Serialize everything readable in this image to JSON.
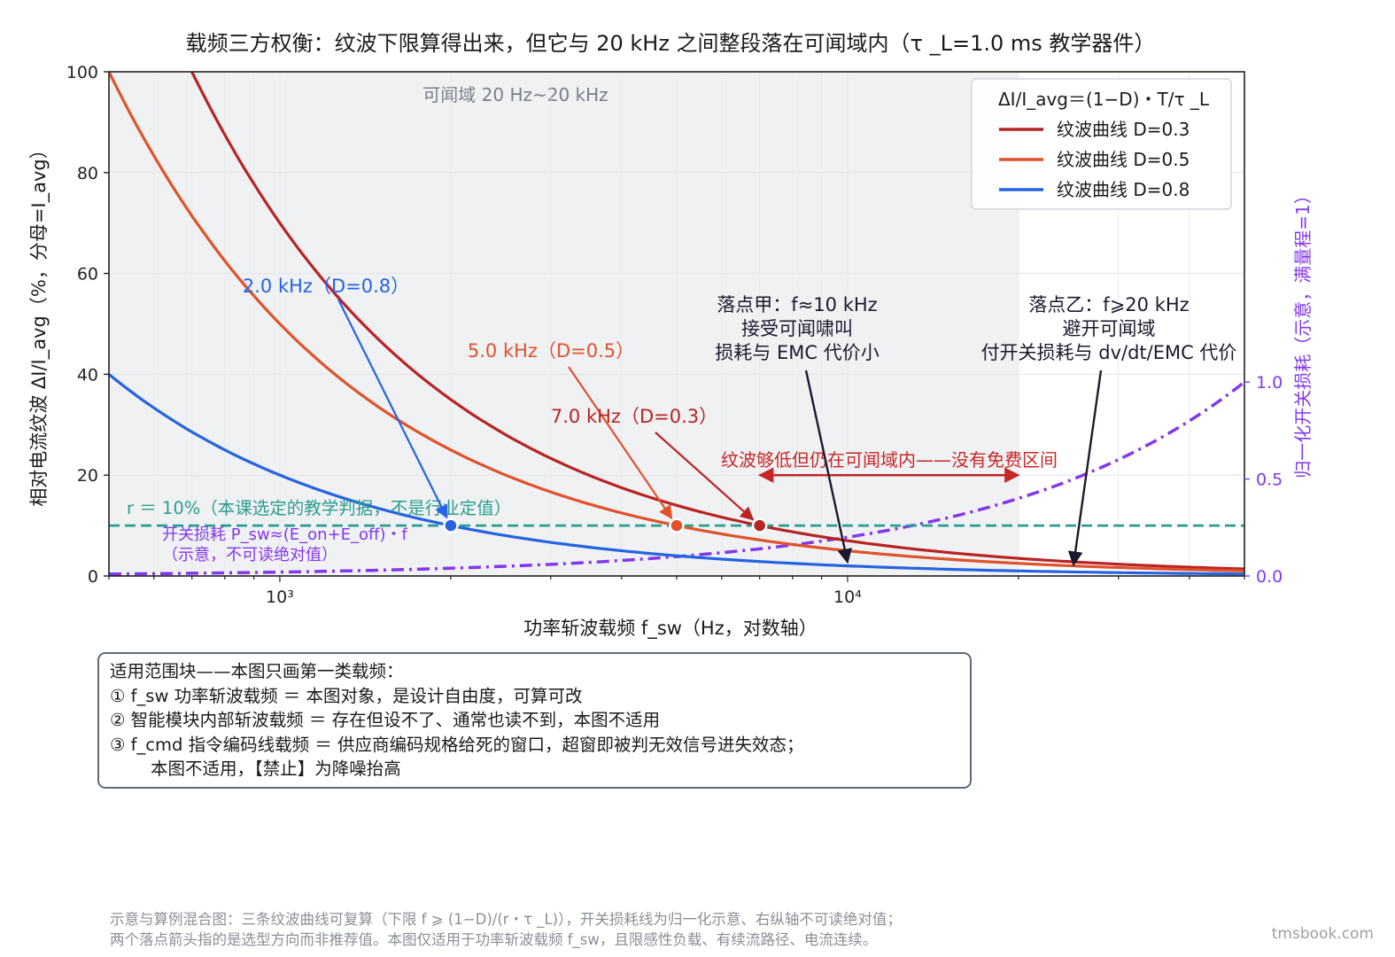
{
  "chart_data": {
    "type": "line",
    "title": "载频三方权衡：纹波下限算得出来，但它与 20 kHz 之间整段落在可闻域内（τ _L=1.0 ms 教学器件）",
    "xlabel": "功率斩波载频 f_sw（Hz，对数轴）",
    "ylabel": "相对电流纹波  ΔI/I_avg（%，分母=I_avg）",
    "y2label": "归一化开关损耗（示意，满量程=1）",
    "x_scale": "log",
    "xlim": [
      500,
      50000
    ],
    "ylim": [
      0,
      100
    ],
    "y2lim": [
      0,
      2.6
    ],
    "x_ticks": [
      1000,
      10000
    ],
    "x_tick_labels": [
      "10³",
      "10⁴"
    ],
    "y_ticks": [
      0,
      20,
      40,
      60,
      80,
      100
    ],
    "y_tick_labels": [
      "0",
      "20",
      "40",
      "60",
      "80",
      "100"
    ],
    "y2_ticks": [
      0,
      0.5,
      1
    ],
    "y2_tick_labels": [
      "0.0",
      "0.5",
      "1.0"
    ],
    "grid": true,
    "audible_region": {
      "from": 500,
      "to": 20000,
      "label": "可闻域 20 Hz~20 kHz"
    },
    "legend": {
      "title": "ΔI/I_avg＝(1−D)・T/τ _L",
      "position": "top-right",
      "entries": [
        "纹波曲线 D=0.3",
        "纹波曲线 D=0.5",
        "纹波曲线 D=0.8"
      ]
    },
    "tau_L_ms": 1.0,
    "series": [
      {
        "name": "纹波曲线 D=0.3",
        "D": 0.3,
        "color": "#b82323",
        "x": [
          500,
          700,
          1000,
          1500,
          2000,
          3000,
          5000,
          7000,
          10000,
          20000,
          50000
        ],
        "values": [
          140,
          100,
          70,
          46.7,
          35,
          23.3,
          14,
          10,
          7,
          3.5,
          1.4
        ]
      },
      {
        "name": "纹波曲线 D=0.5",
        "D": 0.5,
        "color": "#e0522c",
        "x": [
          500,
          700,
          1000,
          1500,
          2000,
          3000,
          5000,
          7000,
          10000,
          20000,
          50000
        ],
        "values": [
          100,
          71.4,
          50,
          33.3,
          25,
          16.7,
          10,
          7.1,
          5,
          2.5,
          1
        ]
      },
      {
        "name": "纹波曲线 D=0.8",
        "D": 0.8,
        "color": "#2563e3",
        "x": [
          500,
          700,
          1000,
          1500,
          2000,
          3000,
          5000,
          7000,
          10000,
          20000,
          50000
        ],
        "values": [
          40,
          28.6,
          20,
          13.3,
          10,
          6.7,
          4,
          2.9,
          2,
          1,
          0.4
        ]
      }
    ],
    "switching_loss": {
      "label": "开关损耗 P_sw≈(E_on+E_off)・f",
      "sublabel": "（示意，不可读绝对值）",
      "color": "#8338ec",
      "axis": "right",
      "x": [
        500,
        1000,
        2000,
        5000,
        10000,
        20000,
        30000,
        50000
      ],
      "values": [
        0.0,
        0.02,
        0.04,
        0.1,
        0.2,
        0.4,
        0.6,
        1.0
      ]
    },
    "threshold": {
      "value": 10,
      "label": "r ＝ 10%（本课选定的教学判据，不是行业定值）",
      "color": "#2a9d8f"
    },
    "markers": [
      {
        "x": 2000,
        "y": 10,
        "label": "2.0 kHz（D=0.8）",
        "color": "#2563e3"
      },
      {
        "x": 5000,
        "y": 10,
        "label": "5.0 kHz（D=0.5）",
        "color": "#e0522c"
      },
      {
        "x": 7000,
        "y": 10,
        "label": "7.0 kHz（D=0.3）",
        "color": "#b82323"
      }
    ],
    "span_annotation": {
      "from": 7000,
      "to": 20000,
      "y": 20,
      "label": "纹波够低但仍在可闻域内——没有免费区间",
      "color": "#c62828"
    },
    "callouts": [
      {
        "lines": [
          "落点甲：f≈10 kHz",
          "接受可闻啸叫",
          "损耗与 EMC 代价小"
        ],
        "target_x": 10000,
        "target_y": 2
      },
      {
        "lines": [
          "落点乙：f⩾20 kHz",
          "避开可闻域",
          "付开关损耗与 dv/dt/EMC 代价"
        ],
        "target_x": 25000,
        "target_y": 1.5
      }
    ]
  },
  "scope": {
    "lines": [
      "适用范围块——本图只画第一类载频：",
      "① f_sw 功率斩波载频 ＝ 本图对象，是设计自由度，可算可改",
      "② 智能模块内部斩波载频 ＝ 存在但设不了、通常也读不到，本图不适用",
      "③ f_cmd 指令编码线载频 ＝ 供应商编码规格给死的窗口，超窗即被判无效信号进失效态；",
      "本图不适用，【禁止】为降噪抬高"
    ]
  },
  "footnote": {
    "line1": "示意与算例混合图：三条纹波曲线可复算（下限 f ⩾ (1−D)/(r・τ _L)），开关损耗线为归一化示意、右纵轴不可读绝对值；",
    "line2": "两个落点箭头指的是选型方向而非推荐值。本图仅适用于功率斩波载频 f_sw，且限感性负载、有续流路径、电流连续。"
  },
  "watermark": "tmsbook.com"
}
